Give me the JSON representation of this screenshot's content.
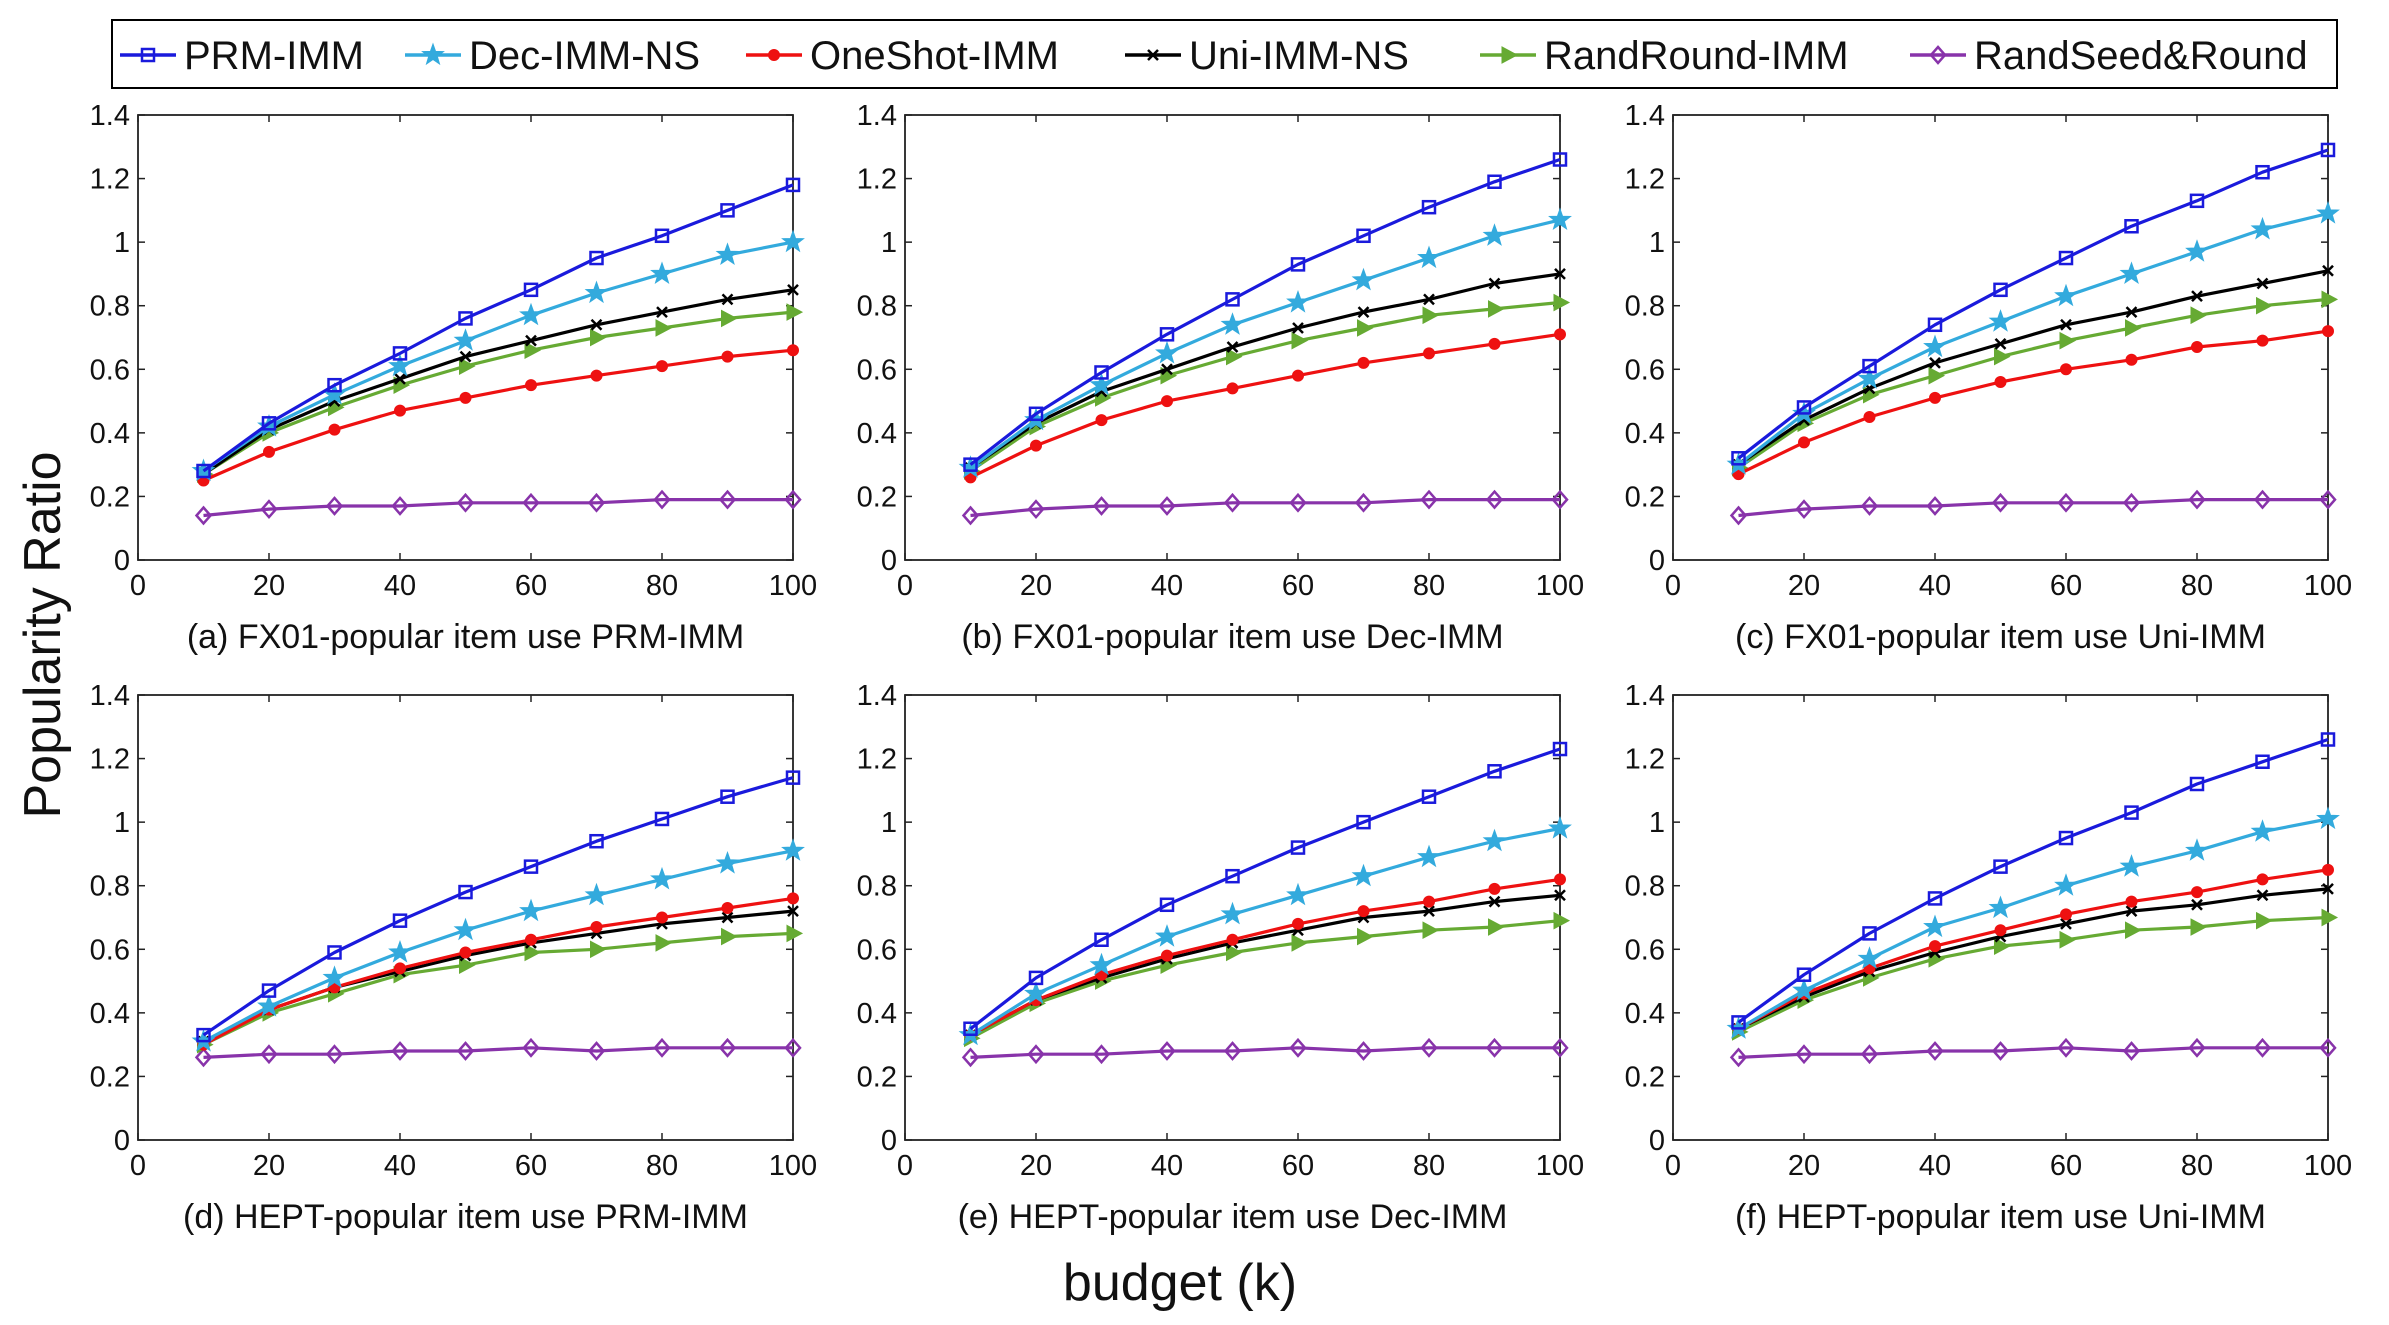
{
  "figure": {
    "ylabel": "Popularity Ratio",
    "xlabel": "budget (k)"
  },
  "legend": {
    "placement": "top-center",
    "items": [
      {
        "name": "PRM-IMM",
        "color": "#1a1adc",
        "marker": "square"
      },
      {
        "name": "Dec-IMM-NS",
        "color": "#33aadd",
        "marker": "star"
      },
      {
        "name": "OneShot-IMM",
        "color": "#ee1111",
        "marker": "circle"
      },
      {
        "name": "Uni-IMM-NS",
        "color": "#000000",
        "marker": "cross"
      },
      {
        "name": "RandRound-IMM",
        "color": "#66aa33",
        "marker": "triangle-right"
      },
      {
        "name": "RandSeed&Round",
        "color": "#8833aa",
        "marker": "diamond"
      }
    ]
  },
  "chart_data": [
    {
      "type": "line",
      "title": "(a) FX01-popular item use PRM-IMM",
      "xlim": [
        0,
        100
      ],
      "ylim": [
        0,
        1.4
      ],
      "xticks": [
        "0",
        "20",
        "40",
        "60",
        "80",
        "100"
      ],
      "yticks": [
        "0",
        "0.2",
        "0.4",
        "0.6",
        "0.8",
        "1",
        "1.2",
        "1.4"
      ],
      "x": [
        10,
        20,
        30,
        40,
        50,
        60,
        70,
        80,
        90,
        100
      ],
      "series": [
        {
          "name": "PRM-IMM",
          "values": [
            0.28,
            0.43,
            0.55,
            0.65,
            0.76,
            0.85,
            0.95,
            1.02,
            1.1,
            1.18
          ]
        },
        {
          "name": "Dec-IMM-NS",
          "values": [
            0.28,
            0.42,
            0.52,
            0.61,
            0.69,
            0.77,
            0.84,
            0.9,
            0.96,
            1.0
          ]
        },
        {
          "name": "OneShot-IMM",
          "values": [
            0.25,
            0.34,
            0.41,
            0.47,
            0.51,
            0.55,
            0.58,
            0.61,
            0.64,
            0.66
          ]
        },
        {
          "name": "Uni-IMM-NS",
          "values": [
            0.27,
            0.41,
            0.5,
            0.57,
            0.64,
            0.69,
            0.74,
            0.78,
            0.82,
            0.85
          ]
        },
        {
          "name": "RandRound-IMM",
          "values": [
            0.27,
            0.4,
            0.48,
            0.55,
            0.61,
            0.66,
            0.7,
            0.73,
            0.76,
            0.78
          ]
        },
        {
          "name": "RandSeed&Round",
          "values": [
            0.14,
            0.16,
            0.17,
            0.17,
            0.18,
            0.18,
            0.18,
            0.19,
            0.19,
            0.19
          ]
        }
      ]
    },
    {
      "type": "line",
      "title": "(b) FX01-popular item use Dec-IMM",
      "xlim": [
        0,
        100
      ],
      "ylim": [
        0,
        1.4
      ],
      "xticks": [
        "0",
        "20",
        "40",
        "60",
        "80",
        "100"
      ],
      "yticks": [
        "0",
        "0.2",
        "0.4",
        "0.6",
        "0.8",
        "1",
        "1.2",
        "1.4"
      ],
      "x": [
        10,
        20,
        30,
        40,
        50,
        60,
        70,
        80,
        90,
        100
      ],
      "series": [
        {
          "name": "PRM-IMM",
          "values": [
            0.3,
            0.46,
            0.59,
            0.71,
            0.82,
            0.93,
            1.02,
            1.11,
            1.19,
            1.26
          ]
        },
        {
          "name": "Dec-IMM-NS",
          "values": [
            0.29,
            0.44,
            0.55,
            0.65,
            0.74,
            0.81,
            0.88,
            0.95,
            1.02,
            1.07
          ]
        },
        {
          "name": "OneShot-IMM",
          "values": [
            0.26,
            0.36,
            0.44,
            0.5,
            0.54,
            0.58,
            0.62,
            0.65,
            0.68,
            0.71
          ]
        },
        {
          "name": "Uni-IMM-NS",
          "values": [
            0.29,
            0.43,
            0.53,
            0.6,
            0.67,
            0.73,
            0.78,
            0.82,
            0.87,
            0.9
          ]
        },
        {
          "name": "RandRound-IMM",
          "values": [
            0.28,
            0.42,
            0.51,
            0.58,
            0.64,
            0.69,
            0.73,
            0.77,
            0.79,
            0.81
          ]
        },
        {
          "name": "RandSeed&Round",
          "values": [
            0.14,
            0.16,
            0.17,
            0.17,
            0.18,
            0.18,
            0.18,
            0.19,
            0.19,
            0.19
          ]
        }
      ]
    },
    {
      "type": "line",
      "title": "(c) FX01-popular item use Uni-IMM",
      "xlim": [
        0,
        100
      ],
      "ylim": [
        0,
        1.4
      ],
      "xticks": [
        "0",
        "20",
        "40",
        "60",
        "80",
        "100"
      ],
      "yticks": [
        "0",
        "0.2",
        "0.4",
        "0.6",
        "0.8",
        "1",
        "1.2",
        "1.4"
      ],
      "x": [
        10,
        20,
        30,
        40,
        50,
        60,
        70,
        80,
        90,
        100
      ],
      "series": [
        {
          "name": "PRM-IMM",
          "values": [
            0.32,
            0.48,
            0.61,
            0.74,
            0.85,
            0.95,
            1.05,
            1.13,
            1.22,
            1.29
          ]
        },
        {
          "name": "Dec-IMM-NS",
          "values": [
            0.3,
            0.46,
            0.57,
            0.67,
            0.75,
            0.83,
            0.9,
            0.97,
            1.04,
            1.09
          ]
        },
        {
          "name": "OneShot-IMM",
          "values": [
            0.27,
            0.37,
            0.45,
            0.51,
            0.56,
            0.6,
            0.63,
            0.67,
            0.69,
            0.72
          ]
        },
        {
          "name": "Uni-IMM-NS",
          "values": [
            0.3,
            0.44,
            0.54,
            0.62,
            0.68,
            0.74,
            0.78,
            0.83,
            0.87,
            0.91
          ]
        },
        {
          "name": "RandRound-IMM",
          "values": [
            0.29,
            0.43,
            0.52,
            0.58,
            0.64,
            0.69,
            0.73,
            0.77,
            0.8,
            0.82
          ]
        },
        {
          "name": "RandSeed&Round",
          "values": [
            0.14,
            0.16,
            0.17,
            0.17,
            0.18,
            0.18,
            0.18,
            0.19,
            0.19,
            0.19
          ]
        }
      ]
    },
    {
      "type": "line",
      "title": "(d) HEPT-popular item use PRM-IMM",
      "xlim": [
        0,
        100
      ],
      "ylim": [
        0,
        1.4
      ],
      "xticks": [
        "0",
        "20",
        "40",
        "60",
        "80",
        "100"
      ],
      "yticks": [
        "0",
        "0.2",
        "0.4",
        "0.6",
        "0.8",
        "1",
        "1.2",
        "1.4"
      ],
      "x": [
        10,
        20,
        30,
        40,
        50,
        60,
        70,
        80,
        90,
        100
      ],
      "series": [
        {
          "name": "PRM-IMM",
          "values": [
            0.33,
            0.47,
            0.59,
            0.69,
            0.78,
            0.86,
            0.94,
            1.01,
            1.08,
            1.14
          ]
        },
        {
          "name": "Dec-IMM-NS",
          "values": [
            0.31,
            0.42,
            0.51,
            0.59,
            0.66,
            0.72,
            0.77,
            0.82,
            0.87,
            0.91
          ]
        },
        {
          "name": "OneShot-IMM",
          "values": [
            0.3,
            0.41,
            0.48,
            0.54,
            0.59,
            0.63,
            0.67,
            0.7,
            0.73,
            0.76
          ]
        },
        {
          "name": "Uni-IMM-NS",
          "values": [
            0.31,
            0.41,
            0.48,
            0.53,
            0.58,
            0.62,
            0.65,
            0.68,
            0.7,
            0.72
          ]
        },
        {
          "name": "RandRound-IMM",
          "values": [
            0.3,
            0.4,
            0.46,
            0.52,
            0.55,
            0.59,
            0.6,
            0.62,
            0.64,
            0.65
          ]
        },
        {
          "name": "RandSeed&Round",
          "values": [
            0.26,
            0.27,
            0.27,
            0.28,
            0.28,
            0.29,
            0.28,
            0.29,
            0.29,
            0.29
          ]
        }
      ]
    },
    {
      "type": "line",
      "title": "(e) HEPT-popular item use Dec-IMM",
      "xlim": [
        0,
        100
      ],
      "ylim": [
        0,
        1.4
      ],
      "xticks": [
        "0",
        "20",
        "40",
        "60",
        "80",
        "100"
      ],
      "yticks": [
        "0",
        "0.2",
        "0.4",
        "0.6",
        "0.8",
        "1",
        "1.2",
        "1.4"
      ],
      "x": [
        10,
        20,
        30,
        40,
        50,
        60,
        70,
        80,
        90,
        100
      ],
      "series": [
        {
          "name": "PRM-IMM",
          "values": [
            0.35,
            0.51,
            0.63,
            0.74,
            0.83,
            0.92,
            1.0,
            1.08,
            1.16,
            1.23
          ]
        },
        {
          "name": "Dec-IMM-NS",
          "values": [
            0.33,
            0.46,
            0.55,
            0.64,
            0.71,
            0.77,
            0.83,
            0.89,
            0.94,
            0.98
          ]
        },
        {
          "name": "OneShot-IMM",
          "values": [
            0.33,
            0.44,
            0.52,
            0.58,
            0.63,
            0.68,
            0.72,
            0.75,
            0.79,
            0.82
          ]
        },
        {
          "name": "Uni-IMM-NS",
          "values": [
            0.33,
            0.44,
            0.51,
            0.57,
            0.62,
            0.66,
            0.7,
            0.72,
            0.75,
            0.77
          ]
        },
        {
          "name": "RandRound-IMM",
          "values": [
            0.32,
            0.43,
            0.5,
            0.55,
            0.59,
            0.62,
            0.64,
            0.66,
            0.67,
            0.69
          ]
        },
        {
          "name": "RandSeed&Round",
          "values": [
            0.26,
            0.27,
            0.27,
            0.28,
            0.28,
            0.29,
            0.28,
            0.29,
            0.29,
            0.29
          ]
        }
      ]
    },
    {
      "type": "line",
      "title": "(f) HEPT-popular item use Uni-IMM",
      "xlim": [
        0,
        100
      ],
      "ylim": [
        0,
        1.4
      ],
      "xticks": [
        "0",
        "20",
        "40",
        "60",
        "80",
        "100"
      ],
      "yticks": [
        "0",
        "0.2",
        "0.4",
        "0.6",
        "0.8",
        "1",
        "1.2",
        "1.4"
      ],
      "x": [
        10,
        20,
        30,
        40,
        50,
        60,
        70,
        80,
        90,
        100
      ],
      "series": [
        {
          "name": "PRM-IMM",
          "values": [
            0.37,
            0.52,
            0.65,
            0.76,
            0.86,
            0.95,
            1.03,
            1.12,
            1.19,
            1.26
          ]
        },
        {
          "name": "Dec-IMM-NS",
          "values": [
            0.35,
            0.47,
            0.57,
            0.67,
            0.73,
            0.8,
            0.86,
            0.91,
            0.97,
            1.01
          ]
        },
        {
          "name": "OneShot-IMM",
          "values": [
            0.35,
            0.46,
            0.54,
            0.61,
            0.66,
            0.71,
            0.75,
            0.78,
            0.82,
            0.85
          ]
        },
        {
          "name": "Uni-IMM-NS",
          "values": [
            0.35,
            0.45,
            0.53,
            0.59,
            0.64,
            0.68,
            0.72,
            0.74,
            0.77,
            0.79
          ]
        },
        {
          "name": "RandRound-IMM",
          "values": [
            0.34,
            0.44,
            0.51,
            0.57,
            0.61,
            0.63,
            0.66,
            0.67,
            0.69,
            0.7
          ]
        },
        {
          "name": "RandSeed&Round",
          "values": [
            0.26,
            0.27,
            0.27,
            0.28,
            0.28,
            0.29,
            0.28,
            0.29,
            0.29,
            0.29
          ]
        }
      ]
    }
  ]
}
